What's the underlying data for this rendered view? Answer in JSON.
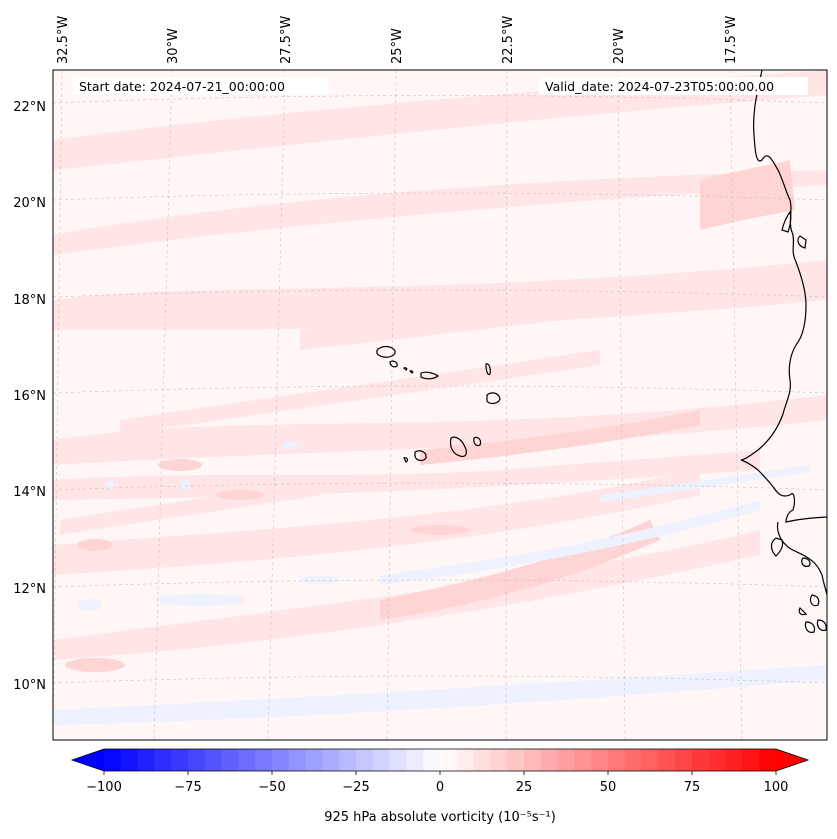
{
  "map": {
    "start_date": "Start date: 2024-07-21_00:00:00",
    "valid_date": "Valid_date: 2024-07-23T05:00:00.00",
    "lon_labels": [
      "32.5°W",
      "30°W",
      "27.5°W",
      "25°W",
      "22.5°W",
      "20°W",
      "17.5°W"
    ],
    "lat_labels": [
      "22°N",
      "20°N",
      "18°N",
      "16°N",
      "14°N",
      "12°N",
      "10°N"
    ],
    "islands": "Cabo Verde islands",
    "coastline": "West African coast (Mauritania, Senegal, Guinea-Bissau)"
  },
  "colorbar": {
    "label": "925 hPa absolute vorticity (10⁻⁵s⁻¹)",
    "ticks": [
      "−100",
      "−75",
      "−50",
      "−25",
      "0",
      "25",
      "50",
      "75",
      "100"
    ],
    "min": -100,
    "max": 100,
    "levels": 40,
    "low_color": "#0000ff",
    "mid_color": "#ffffff",
    "high_color": "#ff0000"
  },
  "colors": {
    "background_fill": "#fff6f6",
    "light_positive": "#ffe4e4",
    "medium_positive": "#ffd3d3",
    "light_negative": "#f1f3ff",
    "coast": "#000000",
    "grid": "#bbbbbb"
  }
}
